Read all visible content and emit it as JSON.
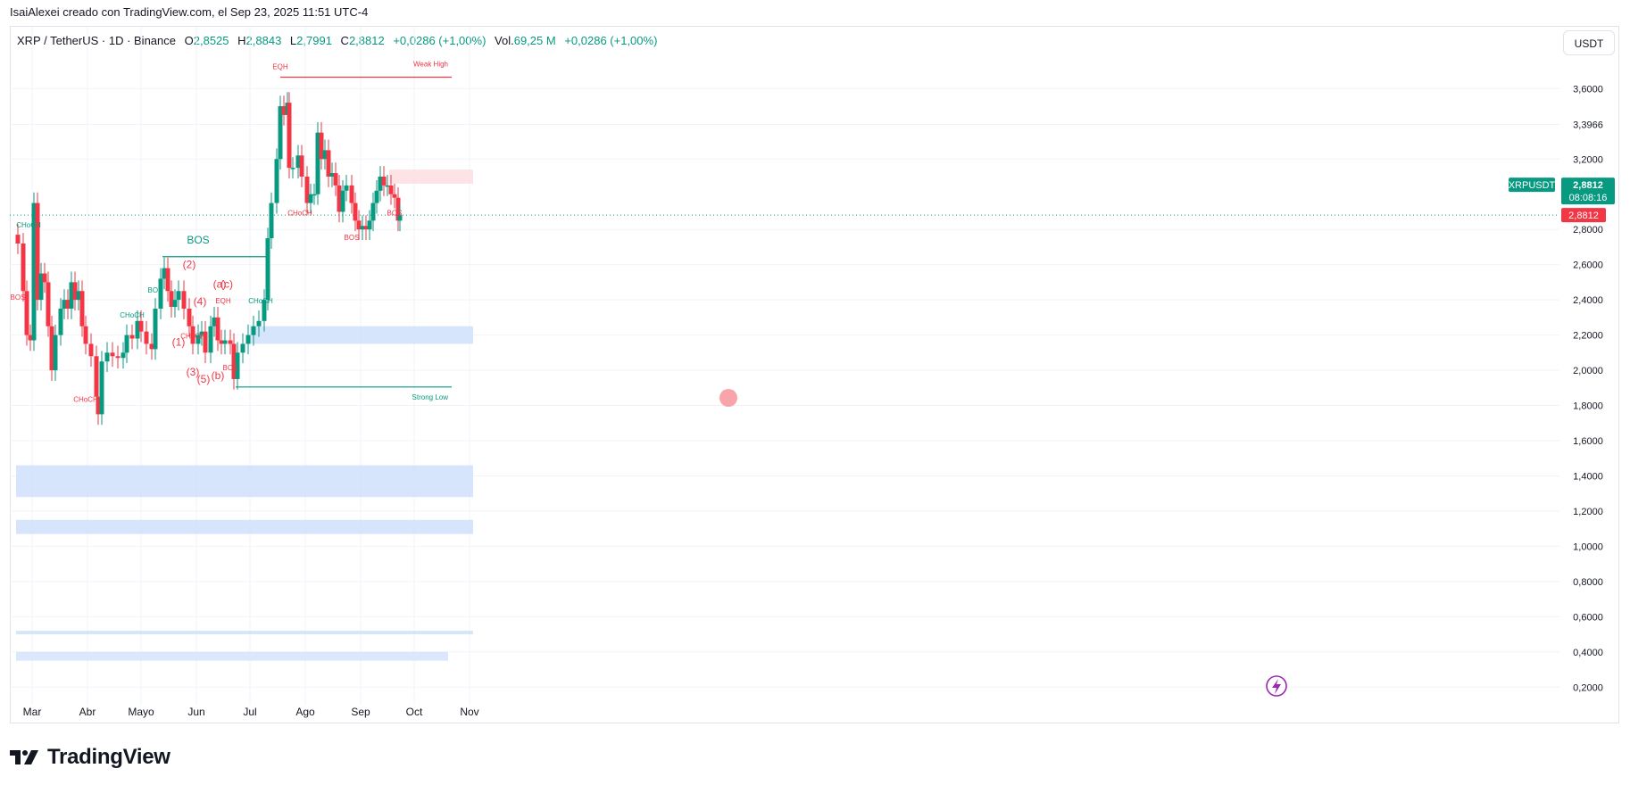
{
  "header": {
    "published_line": "IsaiAlexei creado con TradingView.com, el Sep 23, 2025 11:51 UTC-4"
  },
  "legend": {
    "symbol": "XRP / TetherUS · 1D · Binance",
    "open_label": "O",
    "open": "2,8525",
    "high_label": "H",
    "high": "2,8843",
    "low_label": "L",
    "low": "2,7991",
    "close_label": "C",
    "close": "2,8812",
    "change": "+0,0286 (+1,00%)",
    "volume_label": "Vol.",
    "volume": "69,25 M",
    "volume_change": "+0,0286 (+1,00%)"
  },
  "currency_button": "USDT",
  "brand": "TradingView",
  "colors": {
    "up": "#089981",
    "down": "#f23645",
    "zone_blue": "#d2e2fb",
    "zone_red": "#fde0e3",
    "accent_purple": "#9c27b0"
  },
  "chart_data": {
    "type": "candlestick",
    "symbol": "XRPUSDT",
    "ylim": [
      0.1,
      3.85
    ],
    "y_ticks": [
      "3,6000",
      "3,3966",
      "3,2000",
      "2,8000",
      "2,6000",
      "2,4000",
      "2,2000",
      "2,0000",
      "1,8000",
      "1,6000",
      "1,4000",
      "1,2000",
      "1,0000",
      "0,8000",
      "0,6000",
      "0,4000",
      "0,2000"
    ],
    "x_ticks": [
      {
        "label": "Mar",
        "date": "2025-03-01"
      },
      {
        "label": "Abr",
        "date": "2025-04-01"
      },
      {
        "label": "Mayo",
        "date": "2025-05-01"
      },
      {
        "label": "Jun",
        "date": "2025-06-01"
      },
      {
        "label": "Jul",
        "date": "2025-07-01"
      },
      {
        "label": "Ago",
        "date": "2025-08-01"
      },
      {
        "label": "Sep",
        "date": "2025-09-01"
      },
      {
        "label": "Oct",
        "date": "2025-10-01"
      },
      {
        "label": "Nov",
        "date": "2025-11-01"
      }
    ],
    "price_label": {
      "symbol": "XRPUSDT",
      "price": "2,8812",
      "countdown": "08:08:16",
      "price_value": 2.8812
    },
    "price_tag_red": "2,8812",
    "closes": [
      {
        "date": "2025-02-21",
        "close": 2.72
      },
      {
        "date": "2025-02-24",
        "close": 2.45
      },
      {
        "date": "2025-02-26",
        "close": 2.2
      },
      {
        "date": "2025-02-28",
        "close": 2.17
      },
      {
        "date": "2025-03-02",
        "close": 2.95
      },
      {
        "date": "2025-03-04",
        "close": 2.4
      },
      {
        "date": "2025-03-06",
        "close": 2.55
      },
      {
        "date": "2025-03-08",
        "close": 2.5
      },
      {
        "date": "2025-03-10",
        "close": 2.25
      },
      {
        "date": "2025-03-12",
        "close": 2.0
      },
      {
        "date": "2025-03-14",
        "close": 2.2
      },
      {
        "date": "2025-03-17",
        "close": 2.35
      },
      {
        "date": "2025-03-19",
        "close": 2.4
      },
      {
        "date": "2025-03-21",
        "close": 2.35
      },
      {
        "date": "2025-03-23",
        "close": 2.5
      },
      {
        "date": "2025-03-25",
        "close": 2.4
      },
      {
        "date": "2025-03-27",
        "close": 2.45
      },
      {
        "date": "2025-03-29",
        "close": 2.25
      },
      {
        "date": "2025-03-31",
        "close": 2.15
      },
      {
        "date": "2025-04-03",
        "close": 2.08
      },
      {
        "date": "2025-04-06",
        "close": 1.85
      },
      {
        "date": "2025-04-07",
        "close": 1.75
      },
      {
        "date": "2025-04-09",
        "close": 2.05
      },
      {
        "date": "2025-04-12",
        "close": 2.1
      },
      {
        "date": "2025-04-15",
        "close": 2.08
      },
      {
        "date": "2025-04-18",
        "close": 2.07
      },
      {
        "date": "2025-04-21",
        "close": 2.1
      },
      {
        "date": "2025-04-23",
        "close": 2.2
      },
      {
        "date": "2025-04-26",
        "close": 2.18
      },
      {
        "date": "2025-04-29",
        "close": 2.28
      },
      {
        "date": "2025-05-01",
        "close": 2.22
      },
      {
        "date": "2025-05-04",
        "close": 2.15
      },
      {
        "date": "2025-05-07",
        "close": 2.12
      },
      {
        "date": "2025-05-09",
        "close": 2.35
      },
      {
        "date": "2025-05-12",
        "close": 2.52
      },
      {
        "date": "2025-05-14",
        "close": 2.58
      },
      {
        "date": "2025-05-16",
        "close": 2.45
      },
      {
        "date": "2025-05-18",
        "close": 2.36
      },
      {
        "date": "2025-05-20",
        "close": 2.4
      },
      {
        "date": "2025-05-22",
        "close": 2.45
      },
      {
        "date": "2025-05-25",
        "close": 2.35
      },
      {
        "date": "2025-05-28",
        "close": 2.25
      },
      {
        "date": "2025-05-30",
        "close": 2.15
      },
      {
        "date": "2025-06-02",
        "close": 2.2
      },
      {
        "date": "2025-06-04",
        "close": 2.22
      },
      {
        "date": "2025-06-06",
        "close": 2.1
      },
      {
        "date": "2025-06-09",
        "close": 2.25
      },
      {
        "date": "2025-06-11",
        "close": 2.3
      },
      {
        "date": "2025-06-13",
        "close": 2.17
      },
      {
        "date": "2025-06-15",
        "close": 2.15
      },
      {
        "date": "2025-06-17",
        "close": 2.17
      },
      {
        "date": "2025-06-20",
        "close": 2.15
      },
      {
        "date": "2025-06-22",
        "close": 1.95
      },
      {
        "date": "2025-06-24",
        "close": 2.1
      },
      {
        "date": "2025-06-27",
        "close": 2.15
      },
      {
        "date": "2025-06-30",
        "close": 2.2
      },
      {
        "date": "2025-07-03",
        "close": 2.25
      },
      {
        "date": "2025-07-06",
        "close": 2.28
      },
      {
        "date": "2025-07-09",
        "close": 2.4
      },
      {
        "date": "2025-07-11",
        "close": 2.75
      },
      {
        "date": "2025-07-13",
        "close": 2.95
      },
      {
        "date": "2025-07-16",
        "close": 3.2
      },
      {
        "date": "2025-07-18",
        "close": 3.5
      },
      {
        "date": "2025-07-20",
        "close": 3.45
      },
      {
        "date": "2025-07-22",
        "close": 3.52
      },
      {
        "date": "2025-07-23",
        "close": 3.15
      },
      {
        "date": "2025-07-25",
        "close": 3.15
      },
      {
        "date": "2025-07-28",
        "close": 3.22
      },
      {
        "date": "2025-07-30",
        "close": 3.1
      },
      {
        "date": "2025-08-02",
        "close": 2.95
      },
      {
        "date": "2025-08-04",
        "close": 3.0
      },
      {
        "date": "2025-08-06",
        "close": 3.0
      },
      {
        "date": "2025-08-08",
        "close": 3.35
      },
      {
        "date": "2025-08-10",
        "close": 3.2
      },
      {
        "date": "2025-08-12",
        "close": 3.25
      },
      {
        "date": "2025-08-14",
        "close": 3.1
      },
      {
        "date": "2025-08-16",
        "close": 3.12
      },
      {
        "date": "2025-08-18",
        "close": 3.05
      },
      {
        "date": "2025-08-20",
        "close": 2.9
      },
      {
        "date": "2025-08-22",
        "close": 3.02
      },
      {
        "date": "2025-08-24",
        "close": 3.05
      },
      {
        "date": "2025-08-27",
        "close": 2.95
      },
      {
        "date": "2025-08-29",
        "close": 2.85
      },
      {
        "date": "2025-08-31",
        "close": 2.8
      },
      {
        "date": "2025-09-02",
        "close": 2.82
      },
      {
        "date": "2025-09-04",
        "close": 2.8
      },
      {
        "date": "2025-09-06",
        "close": 2.85
      },
      {
        "date": "2025-09-08",
        "close": 2.95
      },
      {
        "date": "2025-09-10",
        "close": 3.02
      },
      {
        "date": "2025-09-12",
        "close": 3.1
      },
      {
        "date": "2025-09-14",
        "close": 3.05
      },
      {
        "date": "2025-09-16",
        "close": 3.05
      },
      {
        "date": "2025-09-18",
        "close": 3.0
      },
      {
        "date": "2025-09-20",
        "close": 2.98
      },
      {
        "date": "2025-09-22",
        "close": 2.85
      },
      {
        "date": "2025-09-23",
        "close": 2.8812
      }
    ],
    "zones": [
      {
        "color": "blue",
        "from_date": "2025-07-01",
        "to_date": "2025-11-03",
        "y_top": 2.25,
        "y_bottom": 2.15
      },
      {
        "color": "blue",
        "from_date": "2025-02-20",
        "to_date": "2025-11-03",
        "y_top": 1.46,
        "y_bottom": 1.28
      },
      {
        "color": "blue",
        "from_date": "2025-02-20",
        "to_date": "2025-11-03",
        "y_top": 1.15,
        "y_bottom": 1.07
      },
      {
        "color": "blue",
        "from_date": "2025-02-20",
        "to_date": "2025-11-03",
        "y_top": 0.52,
        "y_bottom": 0.5
      },
      {
        "color": "red",
        "from_date": "2025-09-17",
        "to_date": "2025-11-03",
        "y_top": 3.14,
        "y_bottom": 3.06
      }
    ],
    "levels": [
      {
        "label": "Weak High",
        "color": "down",
        "y": 3.665,
        "from_date": "2025-07-18",
        "to_date": "2025-10-22"
      },
      {
        "label": "Strong Low",
        "color": "up",
        "y": 1.905,
        "from_date": "2025-06-23",
        "to_date": "2025-10-22"
      },
      {
        "label": "BOS",
        "color": "up",
        "y": 2.645,
        "from_date": "2025-05-13",
        "to_date": "2025-07-11"
      }
    ],
    "annotations": [
      {
        "text": "EQH",
        "color": "down",
        "date": "2025-07-18",
        "y": 3.71
      },
      {
        "text": "BOS",
        "color": "up",
        "date": "2025-06-02",
        "y": 2.72
      },
      {
        "text": "CHoCH",
        "color": "up",
        "date": "2025-02-27",
        "y": 2.81
      },
      {
        "text": "BOS",
        "color": "down",
        "date": "2025-02-21",
        "y": 2.4
      },
      {
        "text": "CHoCH",
        "color": "down",
        "date": "2025-03-31",
        "y": 1.82
      },
      {
        "text": "CHoCH",
        "color": "up",
        "date": "2025-04-26",
        "y": 2.3
      },
      {
        "text": "BOS",
        "color": "up",
        "date": "2025-05-09",
        "y": 2.44
      },
      {
        "text": "CHoCH",
        "color": "down",
        "date": "2025-05-30",
        "y": 2.18
      },
      {
        "text": "EQH",
        "color": "down",
        "date": "2025-06-16",
        "y": 2.38
      },
      {
        "text": "BOS",
        "color": "down",
        "date": "2025-06-20",
        "y": 2.0
      },
      {
        "text": "CHoCH",
        "color": "up",
        "date": "2025-07-07",
        "y": 2.38
      },
      {
        "text": "CHoCH",
        "color": "down",
        "date": "2025-07-29",
        "y": 2.88
      },
      {
        "text": "BOS",
        "color": "down",
        "date": "2025-08-27",
        "y": 2.74
      },
      {
        "text": "BOS",
        "color": "down",
        "date": "2025-09-20",
        "y": 2.88
      },
      {
        "text": "(1)",
        "color": "down",
        "date": "2025-05-22",
        "y": 2.14
      },
      {
        "text": "(2)",
        "color": "down",
        "date": "2025-05-28",
        "y": 2.58
      },
      {
        "text": "(3)",
        "color": "down",
        "date": "2025-05-30",
        "y": 1.97
      },
      {
        "text": "(4)",
        "color": "down",
        "date": "2025-06-03",
        "y": 2.37
      },
      {
        "text": "(5)",
        "color": "down",
        "date": "2025-06-05",
        "y": 1.93
      },
      {
        "text": "(a)",
        "color": "down",
        "date": "2025-06-14",
        "y": 2.47
      },
      {
        "text": "(b)",
        "color": "down",
        "date": "2025-06-13",
        "y": 1.95
      },
      {
        "text": "(c)",
        "color": "down",
        "date": "2025-06-18",
        "y": 2.47
      }
    ]
  }
}
